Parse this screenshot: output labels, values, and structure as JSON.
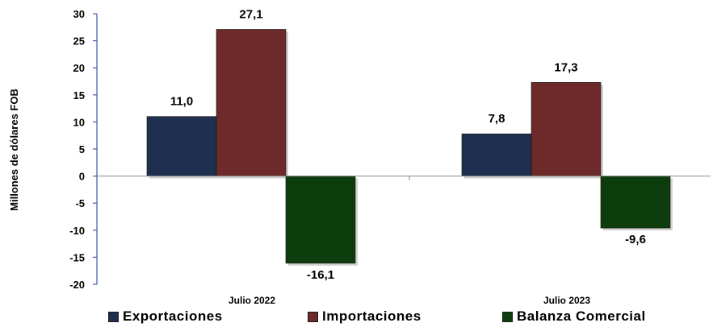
{
  "chart_data": {
    "type": "bar",
    "categories": [
      "Julio 2022",
      "Julio 2023"
    ],
    "series": [
      {
        "name": "Exportaciones",
        "values": [
          11.0,
          7.8
        ],
        "labels": [
          "11,0",
          "7,8"
        ],
        "color": "#1f2f4f"
      },
      {
        "name": "Importaciones",
        "values": [
          27.1,
          17.3
        ],
        "labels": [
          "27,1",
          "17,3"
        ],
        "color": "#6e2a2a"
      },
      {
        "name": "Balanza Comercial",
        "values": [
          -16.1,
          -9.6
        ],
        "labels": [
          "-16,1",
          "-9,6"
        ],
        "color": "#0d3d0d"
      }
    ],
    "ylabel": "Millones de dólares FOB",
    "xlabel": "",
    "ylim": [
      -20,
      30
    ],
    "yticks": [
      -20,
      -15,
      -10,
      -5,
      0,
      5,
      10,
      15,
      20,
      25,
      30
    ],
    "grid": false,
    "legend_position": "bottom"
  }
}
